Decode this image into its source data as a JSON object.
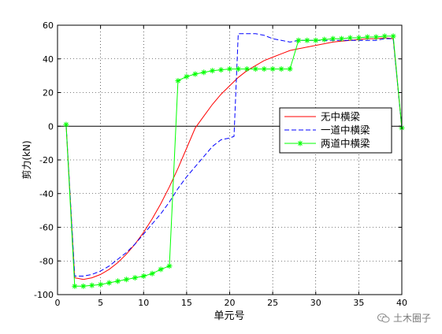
{
  "chart_data": {
    "type": "line",
    "title": "",
    "xlabel": "单元号",
    "ylabel": "剪力(kN)",
    "xlim": [
      0,
      40
    ],
    "ylim": [
      -100,
      60
    ],
    "xticks": [
      0,
      5,
      10,
      15,
      20,
      25,
      30,
      35,
      40
    ],
    "yticks": [
      -100,
      -80,
      -60,
      -40,
      -20,
      0,
      20,
      40,
      60
    ],
    "grid": true,
    "zero_line": true,
    "legend_position": "right",
    "series": [
      {
        "name": "无中横梁",
        "color": "#ff0000",
        "dash": "solid",
        "marker": "none",
        "x": [
          1,
          2,
          3,
          4,
          5,
          6,
          7,
          8,
          9,
          10,
          11,
          12,
          13,
          14,
          15,
          16,
          17,
          18,
          19,
          20,
          21,
          22,
          23,
          24,
          25,
          26,
          27,
          28,
          29,
          30,
          31,
          32,
          33,
          34,
          35,
          36,
          37,
          38,
          39,
          40
        ],
        "y": [
          1,
          -90,
          -91,
          -90,
          -88,
          -85,
          -81,
          -76,
          -70,
          -63,
          -55,
          -46,
          -36,
          -25,
          -13,
          -1,
          6,
          13,
          19,
          24,
          29,
          33,
          36,
          39,
          41,
          43,
          45,
          46,
          47,
          48,
          49,
          50,
          50.5,
          51,
          51.5,
          52,
          52,
          52.5,
          52,
          -1
        ]
      },
      {
        "name": "一道中横梁",
        "color": "#0000ff",
        "dash": "dashed",
        "marker": "none",
        "x": [
          1,
          2,
          3,
          4,
          5,
          6,
          7,
          8,
          9,
          10,
          11,
          12,
          13,
          14,
          15,
          16,
          17,
          18,
          19,
          20,
          20.5,
          21,
          22,
          23,
          24,
          25,
          26,
          27,
          28,
          29,
          30,
          31,
          32,
          33,
          34,
          35,
          36,
          37,
          38,
          39,
          40
        ],
        "y": [
          1,
          -89,
          -89,
          -88,
          -86,
          -83,
          -79,
          -75,
          -70,
          -64,
          -58,
          -52,
          -45,
          -37,
          -30,
          -24,
          -18,
          -12,
          -8,
          -7,
          -6,
          55,
          55,
          55,
          54,
          52,
          51,
          50,
          51,
          51,
          51,
          51,
          51,
          51,
          51,
          51,
          51,
          51,
          52,
          52,
          -1
        ]
      },
      {
        "name": "两道中横梁",
        "color": "#00ff00",
        "dash": "solid",
        "marker": "asterisk",
        "x": [
          1,
          2,
          3,
          4,
          5,
          6,
          7,
          8,
          9,
          10,
          11,
          12,
          13,
          14,
          15,
          16,
          17,
          18,
          19,
          20,
          21,
          22,
          23,
          24,
          25,
          26,
          27,
          28,
          29,
          30,
          31,
          32,
          33,
          34,
          35,
          36,
          37,
          38,
          39,
          40
        ],
        "y": [
          1,
          -95,
          -95,
          -94.5,
          -94,
          -93,
          -92,
          -91,
          -90,
          -89,
          -87.5,
          -85,
          -83,
          27,
          29.5,
          31,
          32,
          33,
          33.5,
          34,
          34,
          34,
          34,
          34,
          34,
          34,
          34,
          51,
          51,
          51,
          51.5,
          52,
          52,
          52.5,
          52.5,
          53,
          53,
          53.5,
          53.5,
          -1
        ]
      }
    ]
  },
  "watermark": {
    "text": "土木圈子",
    "icon": "wechat-icon"
  }
}
